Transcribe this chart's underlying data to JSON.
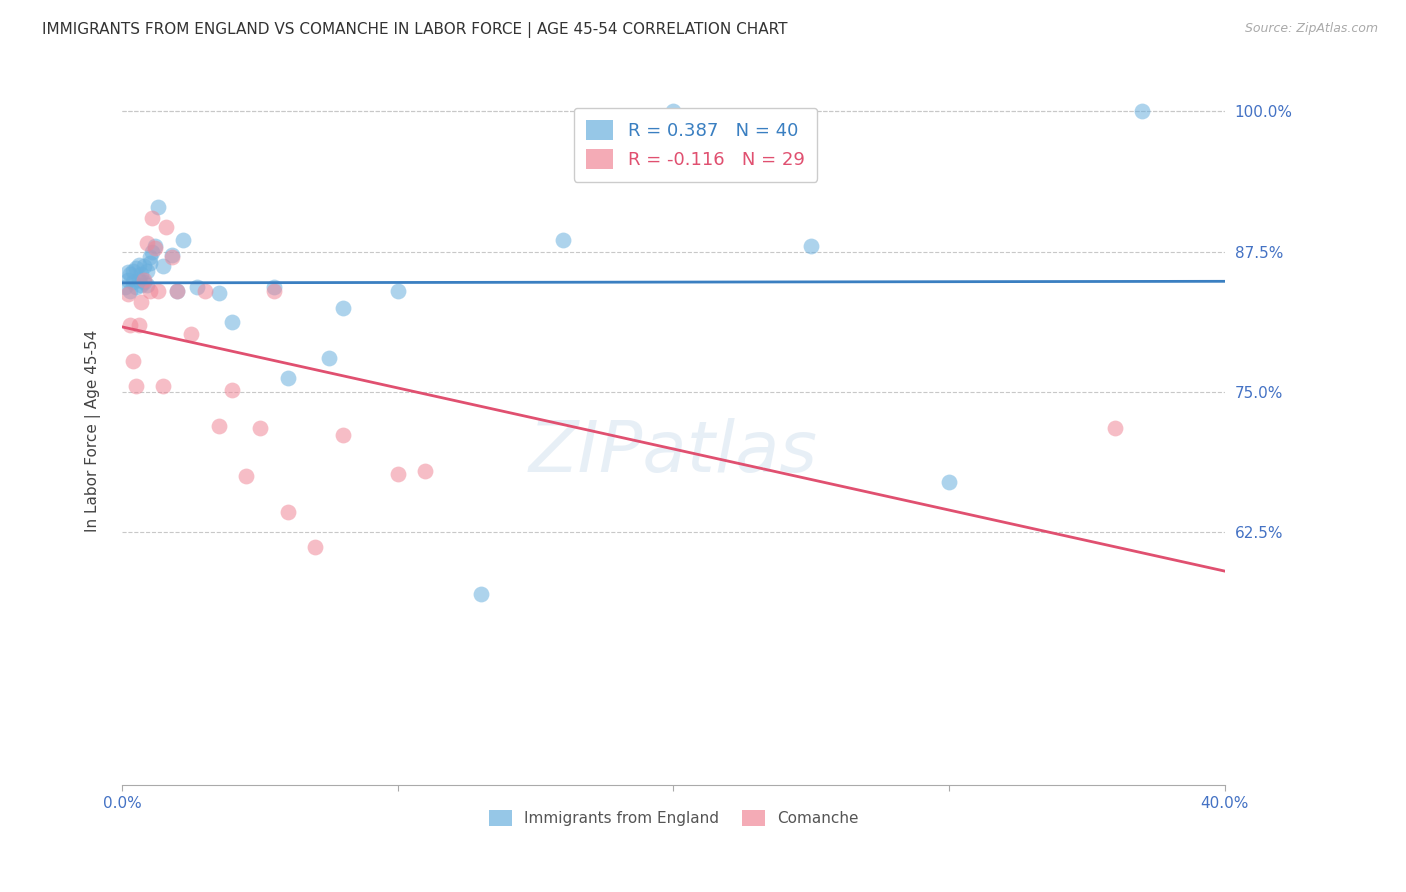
{
  "title": "IMMIGRANTS FROM ENGLAND VS COMANCHE IN LABOR FORCE | AGE 45-54 CORRELATION CHART",
  "source": "Source: ZipAtlas.com",
  "ylabel": "In Labor Force | Age 45-54",
  "xlim": [
    0.0,
    0.4
  ],
  "ylim": [
    0.4,
    1.03
  ],
  "xticks": [
    0.0,
    0.1,
    0.2,
    0.3,
    0.4
  ],
  "xtick_labels": [
    "0.0%",
    "",
    "",
    "",
    "40.0%"
  ],
  "yticks": [
    0.625,
    0.75,
    0.875,
    1.0
  ],
  "ytick_labels": [
    "62.5%",
    "75.0%",
    "87.5%",
    "100.0%"
  ],
  "england_color": "#6ab0de",
  "comanche_color": "#f08898",
  "england_line_color": "#3a7fc1",
  "comanche_line_color": "#e05070",
  "england_R": 0.387,
  "england_N": 40,
  "comanche_R": -0.116,
  "comanche_N": 29,
  "england_x": [
    0.001,
    0.002,
    0.002,
    0.003,
    0.003,
    0.004,
    0.004,
    0.005,
    0.005,
    0.006,
    0.006,
    0.007,
    0.007,
    0.008,
    0.008,
    0.009,
    0.009,
    0.01,
    0.01,
    0.011,
    0.012,
    0.013,
    0.015,
    0.018,
    0.022,
    0.027,
    0.035,
    0.055,
    0.08,
    0.1,
    0.13,
    0.16,
    0.02,
    0.04,
    0.06,
    0.075,
    0.2,
    0.25,
    0.3,
    0.37
  ],
  "england_y": [
    0.843,
    0.85,
    0.857,
    0.84,
    0.855,
    0.848,
    0.858,
    0.843,
    0.86,
    0.85,
    0.863,
    0.845,
    0.855,
    0.862,
    0.848,
    0.858,
    0.845,
    0.865,
    0.87,
    0.875,
    0.88,
    0.915,
    0.862,
    0.872,
    0.885,
    0.843,
    0.838,
    0.843,
    0.825,
    0.84,
    0.57,
    0.885,
    0.84,
    0.812,
    0.762,
    0.78,
    1.0,
    0.88,
    0.67,
    1.0
  ],
  "comanche_x": [
    0.002,
    0.003,
    0.004,
    0.005,
    0.006,
    0.007,
    0.008,
    0.009,
    0.01,
    0.011,
    0.012,
    0.013,
    0.015,
    0.016,
    0.018,
    0.02,
    0.025,
    0.03,
    0.035,
    0.04,
    0.045,
    0.05,
    0.055,
    0.06,
    0.07,
    0.08,
    0.1,
    0.11,
    0.36
  ],
  "comanche_y": [
    0.837,
    0.81,
    0.778,
    0.755,
    0.81,
    0.83,
    0.85,
    0.883,
    0.84,
    0.905,
    0.878,
    0.84,
    0.755,
    0.897,
    0.87,
    0.84,
    0.802,
    0.84,
    0.72,
    0.752,
    0.675,
    0.718,
    0.84,
    0.643,
    0.612,
    0.712,
    0.677,
    0.68,
    0.718
  ]
}
